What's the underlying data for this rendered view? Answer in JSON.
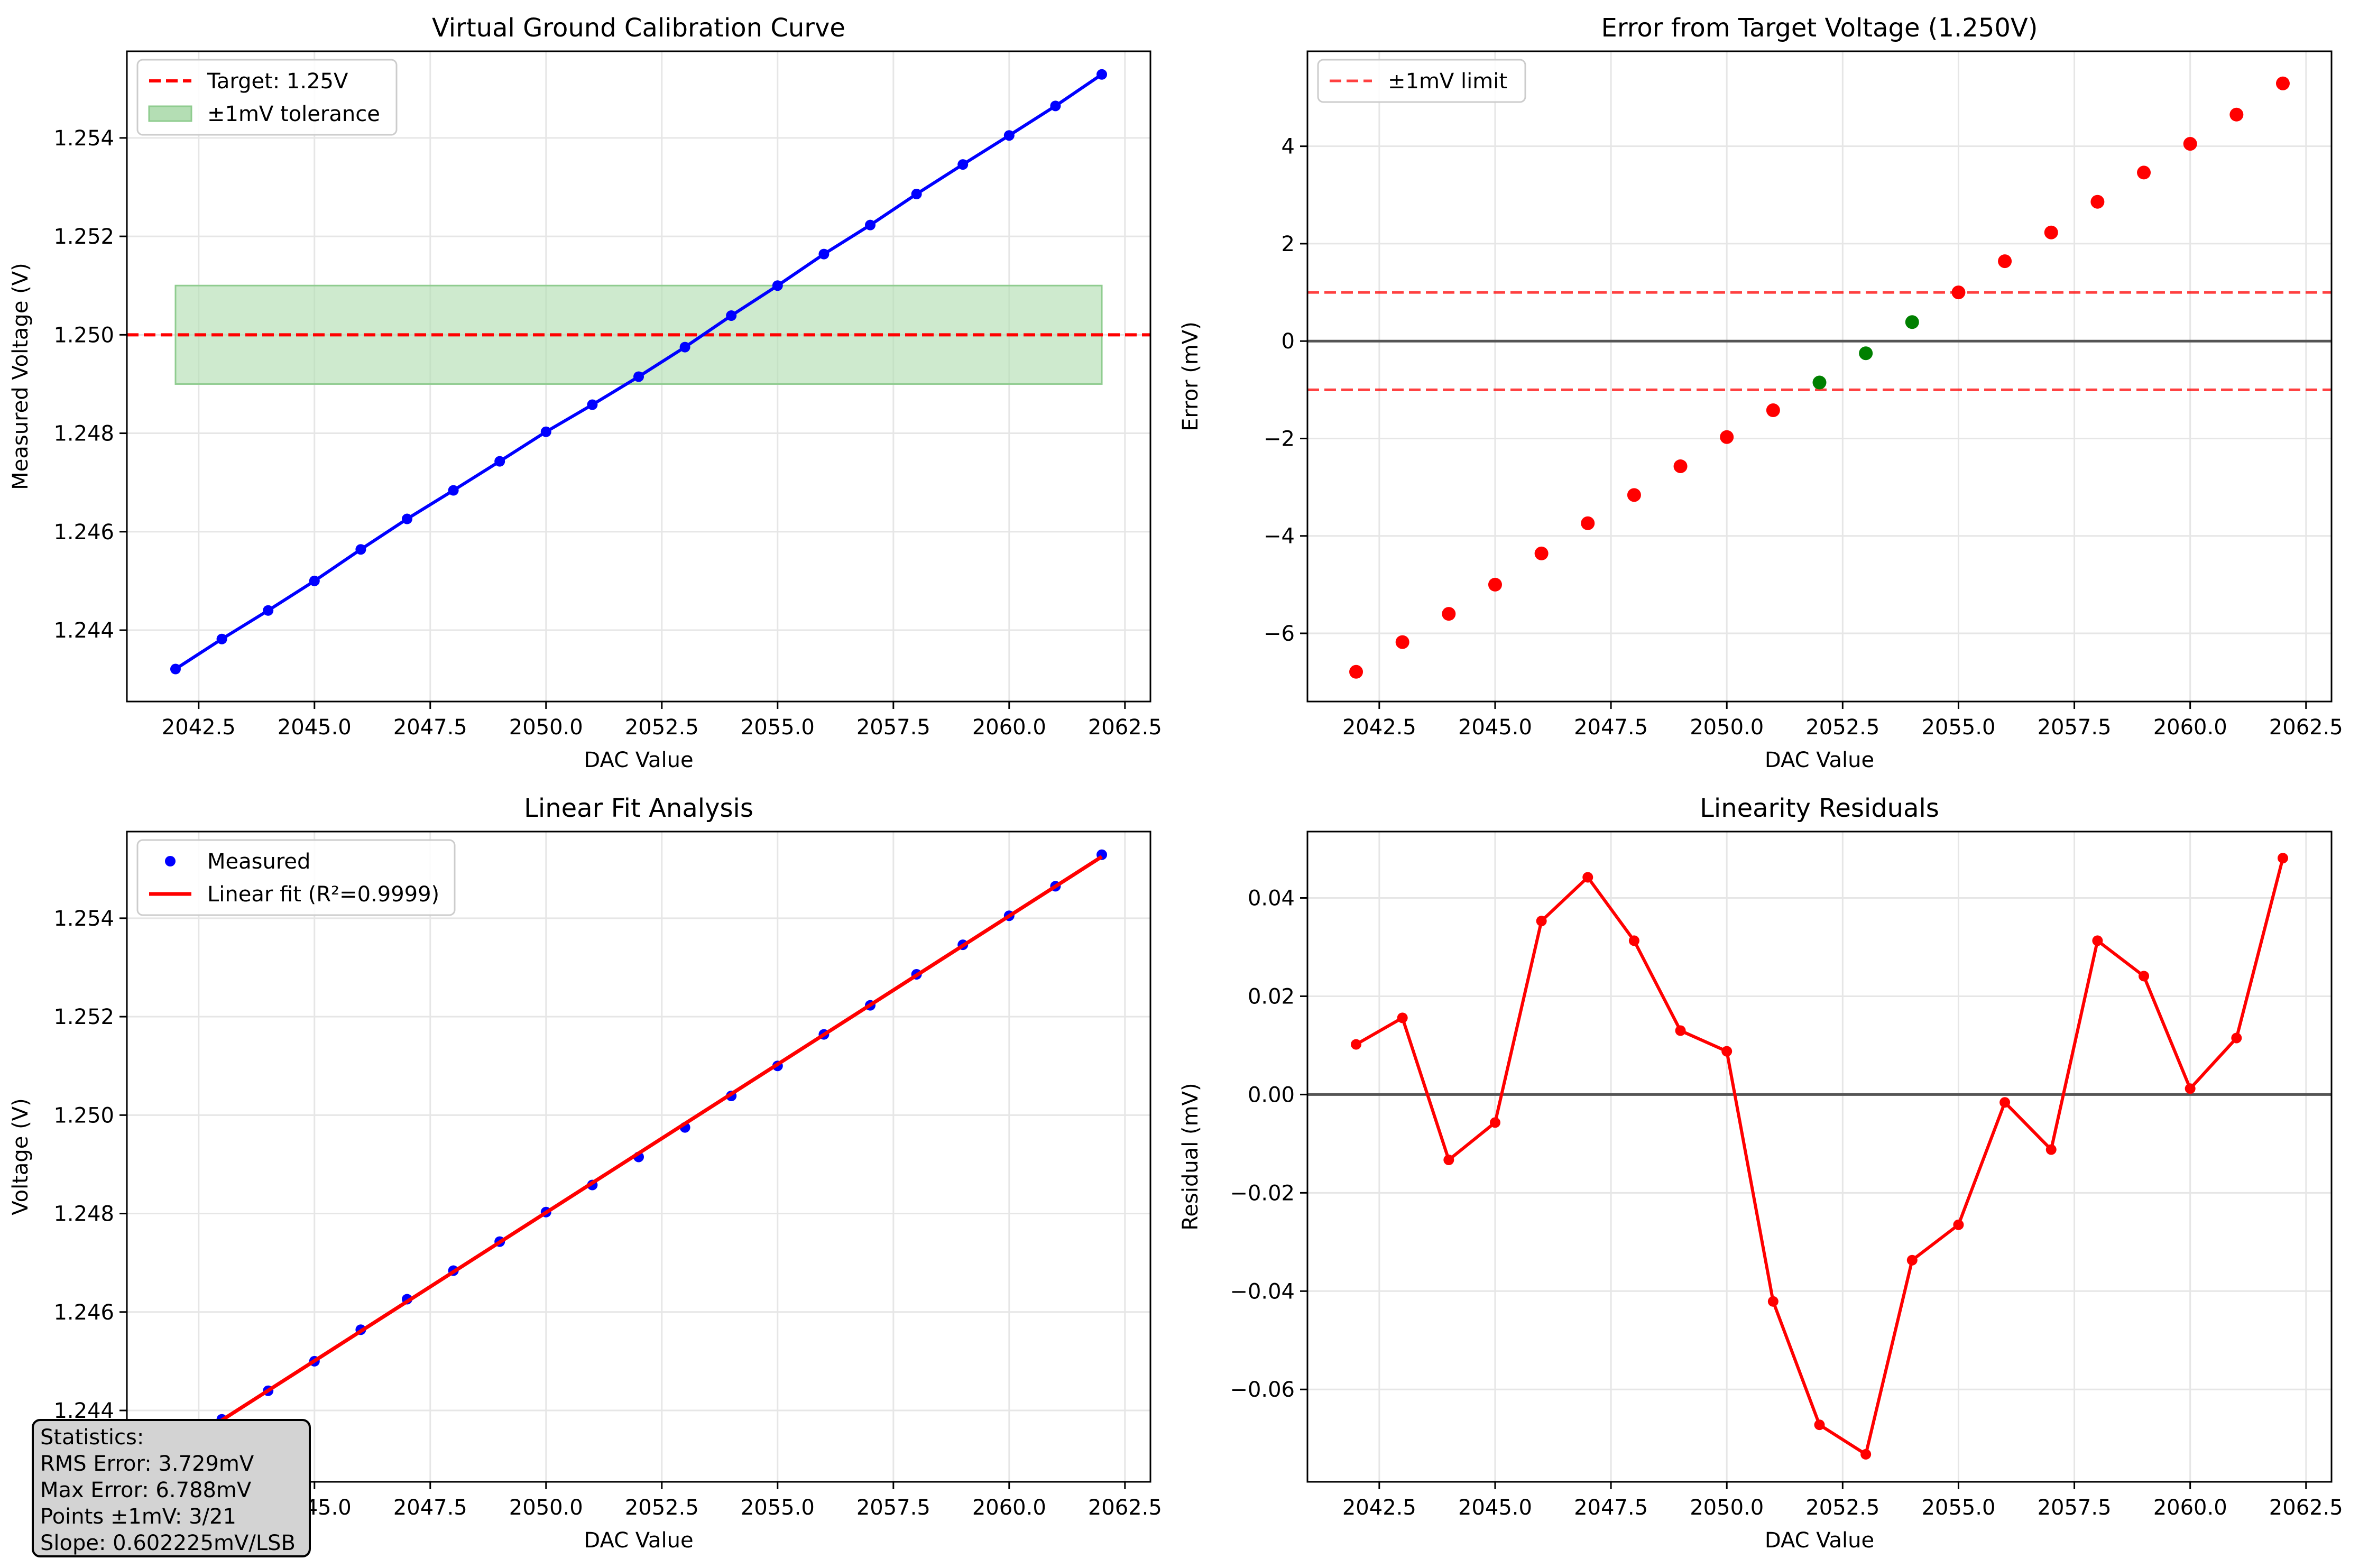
{
  "colors": {
    "blue": "#0000ff",
    "red": "#ff0000",
    "green": "#008000",
    "tolerance_fill": "#b4deb4",
    "zero_line": "#555555",
    "grid": "#e6e6e6"
  },
  "chart_data": [
    {
      "type": "line",
      "title": "Virtual Ground Calibration Curve",
      "xlabel": "DAC Value",
      "ylabel": "Measured Voltage (V)",
      "xlim": [
        2040.95,
        2063.05
      ],
      "ylim": [
        1.24255,
        1.25576
      ],
      "xticks": [
        "2042.5",
        "2045.0",
        "2047.5",
        "2050.0",
        "2052.5",
        "2055.0",
        "2057.5",
        "2060.0",
        "2062.5"
      ],
      "yticks": [
        "1.244",
        "1.246",
        "1.248",
        "1.250",
        "1.252",
        "1.254"
      ],
      "grid": true,
      "legend_placement": "upper left",
      "legend": [
        "Target: 1.25V",
        "±1mV tolerance"
      ],
      "target_voltage": 1.25,
      "tolerance_band": [
        1.249,
        1.251
      ],
      "series": [
        {
          "x": [
            2042,
            2043,
            2044,
            2045,
            2046,
            2047,
            2048,
            2049,
            2050,
            2051,
            2052,
            2053,
            2054,
            2055,
            2056,
            2057,
            2058,
            2059,
            2060,
            2061,
            2062
          ],
          "values": [
            1.24321,
            1.24382,
            1.2444,
            1.245,
            1.24564,
            1.24626,
            1.24684,
            1.24743,
            1.24803,
            1.24858,
            1.24915,
            1.24975,
            1.25039,
            1.251,
            1.25164,
            1.25223,
            1.25286,
            1.25346,
            1.25405,
            1.25465,
            1.25529
          ]
        }
      ]
    },
    {
      "type": "scatter",
      "title": "Error from Target Voltage (1.250V)",
      "xlabel": "DAC Value",
      "ylabel": "Error (mV)",
      "xlim": [
        2040.95,
        2063.05
      ],
      "ylim": [
        -7.4,
        5.95
      ],
      "xticks": [
        "2042.5",
        "2045.0",
        "2047.5",
        "2050.0",
        "2052.5",
        "2055.0",
        "2057.5",
        "2060.0",
        "2062.5"
      ],
      "yticks": [
        "−6",
        "−4",
        "−2",
        "0",
        "2",
        "4"
      ],
      "grid": true,
      "legend_placement": "upper left",
      "legend": [
        "±1mV limit"
      ],
      "limit_lines": [
        1,
        -1
      ],
      "series": [
        {
          "x": [
            2042,
            2043,
            2044,
            2045,
            2046,
            2047,
            2048,
            2049,
            2050,
            2051,
            2052,
            2053,
            2054,
            2055,
            2056,
            2057,
            2058,
            2059,
            2060,
            2061,
            2062
          ],
          "values": [
            -6.79,
            -6.18,
            -5.6,
            -5.0,
            -4.36,
            -3.74,
            -3.16,
            -2.57,
            -1.97,
            -1.42,
            -0.85,
            -0.25,
            0.39,
            1.0,
            1.64,
            2.23,
            2.86,
            3.46,
            4.05,
            4.65,
            5.29
          ],
          "colors": [
            "red",
            "red",
            "red",
            "red",
            "red",
            "red",
            "red",
            "red",
            "red",
            "red",
            "green",
            "green",
            "green",
            "red",
            "red",
            "red",
            "red",
            "red",
            "red",
            "red",
            "red"
          ]
        }
      ]
    },
    {
      "type": "line",
      "title": "Linear Fit Analysis",
      "xlabel": "DAC Value",
      "ylabel": "Voltage (V)",
      "xlim": [
        2040.95,
        2063.05
      ],
      "ylim": [
        1.24255,
        1.25576
      ],
      "xticks": [
        "2042.5",
        "2045.0",
        "2047.5",
        "2050.0",
        "2052.5",
        "2055.0",
        "2057.5",
        "2060.0",
        "2062.5"
      ],
      "yticks": [
        "1.244",
        "1.246",
        "1.248",
        "1.250",
        "1.252",
        "1.254"
      ],
      "grid": true,
      "legend_placement": "upper left",
      "legend": [
        "Measured",
        "Linear fit (R²=0.9999)"
      ],
      "series": [
        {
          "name": "Measured",
          "x": [
            2042,
            2043,
            2044,
            2045,
            2046,
            2047,
            2048,
            2049,
            2050,
            2051,
            2052,
            2053,
            2054,
            2055,
            2056,
            2057,
            2058,
            2059,
            2060,
            2061,
            2062
          ],
          "values": [
            1.24321,
            1.24382,
            1.2444,
            1.245,
            1.24564,
            1.24626,
            1.24684,
            1.24743,
            1.24803,
            1.24858,
            1.24915,
            1.24975,
            1.25039,
            1.251,
            1.25164,
            1.25223,
            1.25286,
            1.25346,
            1.25405,
            1.25465,
            1.25529
          ]
        },
        {
          "name": "Linear fit (R²=0.9999)",
          "x": [
            2042,
            2062
          ],
          "values": [
            1.2432,
            1.25525
          ]
        }
      ]
    },
    {
      "type": "line",
      "title": "Linearity Residuals",
      "xlabel": "DAC Value",
      "ylabel": "Residual (mV)",
      "xlim": [
        2040.95,
        2063.05
      ],
      "ylim": [
        -0.0788,
        0.0535
      ],
      "xticks": [
        "2042.5",
        "2045.0",
        "2047.5",
        "2050.0",
        "2052.5",
        "2055.0",
        "2057.5",
        "2060.0",
        "2062.5"
      ],
      "yticks": [
        "−0.06",
        "−0.04",
        "−0.02",
        "0.00",
        "0.02",
        "0.04"
      ],
      "grid": true,
      "series": [
        {
          "x": [
            2042,
            2043,
            2044,
            2045,
            2046,
            2047,
            2048,
            2049,
            2050,
            2051,
            2052,
            2053,
            2054,
            2055,
            2056,
            2057,
            2058,
            2059,
            2060,
            2061,
            2062
          ],
          "values": [
            0.0102,
            0.0156,
            -0.0133,
            -0.0057,
            0.0353,
            0.0442,
            0.0313,
            0.013,
            0.0088,
            -0.0421,
            -0.0672,
            -0.0732,
            -0.0337,
            -0.0265,
            -0.0016,
            -0.0112,
            0.0313,
            0.0241,
            0.0012,
            0.0115,
            0.0481
          ]
        }
      ]
    }
  ],
  "stats": {
    "lines": [
      "Statistics:",
      "RMS Error: 3.729mV",
      "Max Error: 6.788mV",
      "Points ±1mV: 3/21",
      "Slope: 0.602225mV/LSB"
    ]
  }
}
